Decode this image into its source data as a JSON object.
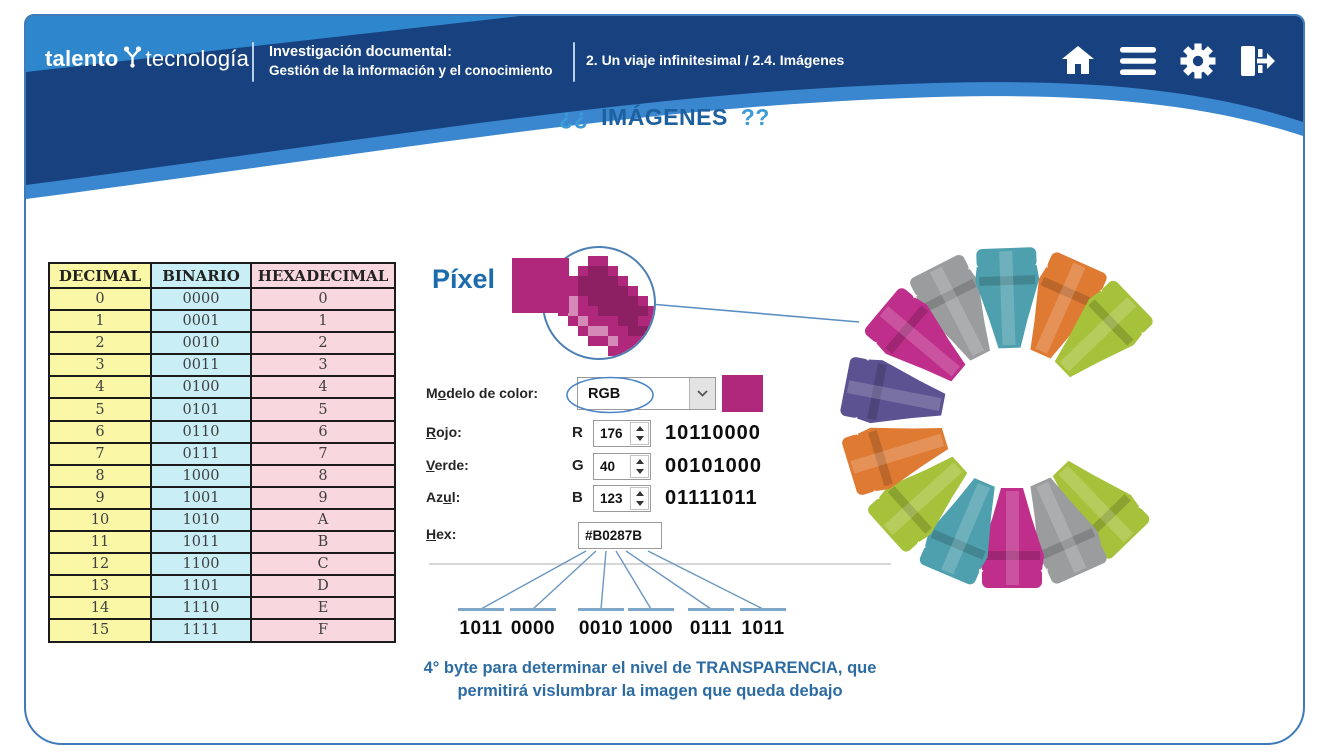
{
  "navbar": {
    "logo": {
      "word_bold": "talento",
      "word_light": "tecnología"
    },
    "course": {
      "line1": "Investigación documental:",
      "line2": "Gestión de la información y el conocimiento"
    },
    "breadcrumb": "2. Un viaje infinitesimal / 2.4. Imágenes",
    "icons": [
      {
        "name": "home"
      },
      {
        "name": "menu"
      },
      {
        "name": "settings"
      },
      {
        "name": "exit"
      }
    ]
  },
  "page_title": {
    "open": "¿¿",
    "word": "IMÁGENES",
    "close": "??"
  },
  "conversion_table": {
    "headers": [
      "DECIMAL",
      "BINARIO",
      "HEXADECIMAL"
    ],
    "rows": [
      [
        "0",
        "0000",
        "0"
      ],
      [
        "1",
        "0001",
        "1"
      ],
      [
        "2",
        "0010",
        "2"
      ],
      [
        "3",
        "0011",
        "3"
      ],
      [
        "4",
        "0100",
        "4"
      ],
      [
        "5",
        "0101",
        "5"
      ],
      [
        "6",
        "0110",
        "6"
      ],
      [
        "7",
        "0111",
        "7"
      ],
      [
        "8",
        "1000",
        "8"
      ],
      [
        "9",
        "1001",
        "9"
      ],
      [
        "10",
        "1010",
        "A"
      ],
      [
        "11",
        "1011",
        "B"
      ],
      [
        "12",
        "1100",
        "C"
      ],
      [
        "13",
        "1101",
        "D"
      ],
      [
        "14",
        "1110",
        "E"
      ],
      [
        "15",
        "1111",
        "F"
      ]
    ]
  },
  "pixel_section": {
    "label": "Píxel",
    "pixel_color": "#B0287B"
  },
  "color_dialog": {
    "model_label": {
      "pre": "M",
      "key": "o",
      "post": "delo de color:"
    },
    "model_value": "RGB",
    "swatch_color": "#B0287B",
    "channels": [
      {
        "label": {
          "pre": "",
          "key": "R",
          "post": "ojo:"
        },
        "letter": "R",
        "value": "176",
        "binary": "10110000"
      },
      {
        "label": {
          "pre": "",
          "key": "V",
          "post": "erde:"
        },
        "letter": "G",
        "value": "40",
        "binary": "00101000"
      },
      {
        "label": {
          "pre": "Az",
          "key": "u",
          "post": "l:"
        },
        "letter": "B",
        "value": "123",
        "binary": "01111011"
      }
    ],
    "hex_label": {
      "pre": "",
      "key": "H",
      "post": "ex:"
    },
    "hex_value": "#B0287B"
  },
  "binary_breakdown": {
    "groups": [
      "1011",
      "0000",
      "0010",
      "1000",
      "0111",
      "1011"
    ]
  },
  "caption": {
    "line1": "4° byte para determinar el nivel de TRANSPARENCIA, que",
    "line2": "permitirá vislumbrar la imagen que queda debajo"
  },
  "crayon_wheel": {
    "palette": {
      "magenta": "#BE2E8A",
      "gray": "#9A9C9E",
      "teal": "#4FA0AE",
      "orange": "#DF7A33",
      "lime": "#A6C23B",
      "purple": "#5C5191"
    },
    "crayons": [
      {
        "color": "gray",
        "angle": 333
      },
      {
        "color": "teal",
        "angle": 358
      },
      {
        "color": "orange",
        "angle": 24
      },
      {
        "color": "lime",
        "angle": 46
      },
      {
        "color": "lime",
        "angle": 136
      },
      {
        "color": "gray",
        "angle": 156
      },
      {
        "color": "magenta",
        "angle": 180
      },
      {
        "color": "teal",
        "angle": 203
      },
      {
        "color": "lime",
        "angle": 228
      },
      {
        "color": "orange",
        "angle": 253
      },
      {
        "color": "purple",
        "angle": 281
      },
      {
        "color": "magenta",
        "angle": 310
      }
    ]
  }
}
